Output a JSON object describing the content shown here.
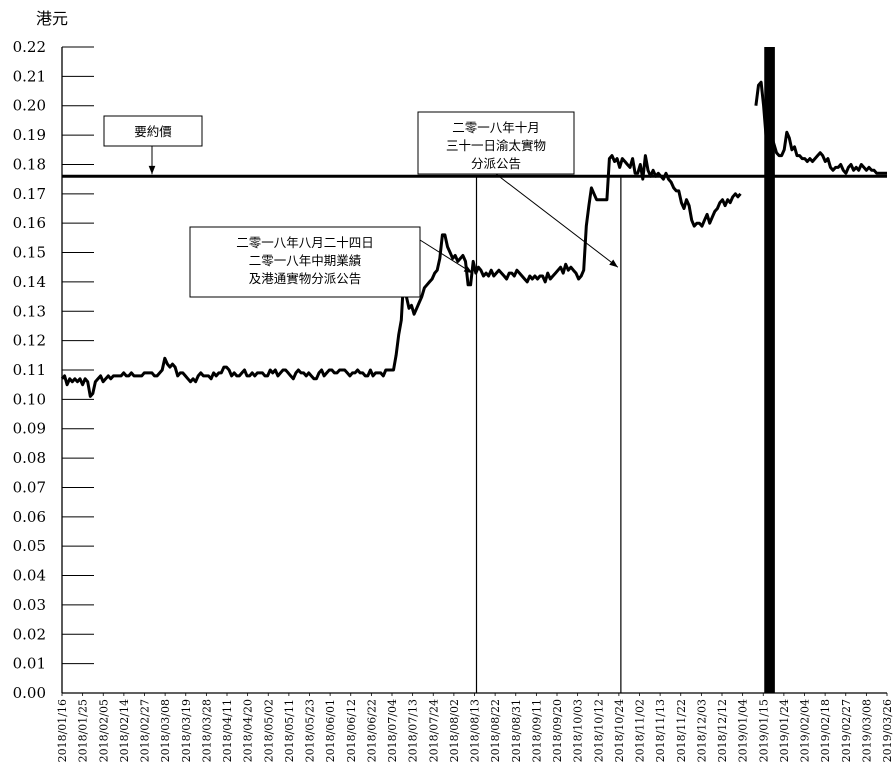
{
  "chart_data": {
    "type": "line",
    "ylabel": "港元",
    "ylim": [
      0,
      0.22
    ],
    "yticks": [
      "0.00",
      "0.01",
      "0.02",
      "0.03",
      "0.04",
      "0.05",
      "0.06",
      "0.07",
      "0.08",
      "0.09",
      "0.10",
      "0.11",
      "0.12",
      "0.13",
      "0.14",
      "0.15",
      "0.16",
      "0.17",
      "0.18",
      "0.19",
      "0.20",
      "0.21",
      "0.22"
    ],
    "xlim": [
      "2018-01-16",
      "2019-03-26"
    ],
    "xticks": [
      "2018/01/16",
      "2018/01/25",
      "2018/02/05",
      "2018/02/14",
      "2018/02/27",
      "2018/03/08",
      "2018/03/19",
      "2018/03/28",
      "2018/04/11",
      "2018/04/20",
      "2018/05/02",
      "2018/05/11",
      "2018/05/23",
      "2018/06/01",
      "2018/06/12",
      "2018/06/22",
      "2018/07/04",
      "2018/07/13",
      "2018/07/24",
      "2018/08/02",
      "2018/08/13",
      "2018/08/22",
      "2018/08/31",
      "2018/09/11",
      "2018/09/20",
      "2018/10/03",
      "2018/10/12",
      "2018/10/24",
      "2018/11/02",
      "2018/11/13",
      "2018/11/22",
      "2018/12/03",
      "2018/12/12",
      "2019/01/04",
      "2019/01/15",
      "2019/01/24",
      "2019/02/04",
      "2019/02/18",
      "2019/02/27",
      "2019/03/08",
      "2019/03/26"
    ],
    "grid": false,
    "series": [
      {
        "values": [
          0.107,
          0.108,
          0.105,
          0.107,
          0.106,
          0.107,
          0.106,
          0.107,
          0.105,
          0.107,
          0.106,
          0.101,
          0.102,
          0.106,
          0.107,
          0.108,
          0.106,
          0.107,
          0.108,
          0.107,
          0.108,
          0.108,
          0.108,
          0.108,
          0.109,
          0.108,
          0.108,
          0.109,
          0.108,
          0.108,
          0.108,
          0.108,
          0.109,
          0.109,
          0.109,
          0.109,
          0.108,
          0.108,
          0.109,
          0.11,
          0.114,
          0.112,
          0.111,
          0.112,
          0.111,
          0.108,
          0.109,
          0.109,
          0.108,
          0.107,
          0.106,
          0.107,
          0.106,
          0.108,
          0.109,
          0.108,
          0.108,
          0.108,
          0.107,
          0.109,
          0.108,
          0.109,
          0.109,
          0.111,
          0.111,
          0.11,
          0.108,
          0.109,
          0.108,
          0.108,
          0.109,
          0.11,
          0.108,
          0.108,
          0.109,
          0.108,
          0.109,
          0.109,
          0.109,
          0.108,
          0.108,
          0.11,
          0.109,
          0.11,
          0.108,
          0.109,
          0.11,
          0.11,
          0.109,
          0.108,
          0.107,
          0.109,
          0.11,
          0.109,
          0.109,
          0.108,
          0.109,
          0.108,
          0.107,
          0.107,
          0.109,
          0.11,
          0.108,
          0.109,
          0.11,
          0.11,
          0.109,
          0.109,
          0.11,
          0.11,
          0.11,
          0.109,
          0.108,
          0.109,
          0.109,
          0.11,
          0.109,
          0.109,
          0.108,
          0.108,
          0.11,
          0.108,
          0.109,
          0.109,
          0.109,
          0.108,
          0.11,
          0.11,
          0.11,
          0.11,
          0.115,
          0.122,
          0.127,
          0.142,
          0.135,
          0.131,
          0.132,
          0.129,
          0.131,
          0.133,
          0.135,
          0.138,
          0.139,
          0.14,
          0.141,
          0.143,
          0.144,
          0.148,
          0.156,
          0.156,
          0.152,
          0.15,
          0.148,
          0.149,
          0.147,
          0.148,
          0.149,
          0.147,
          0.139,
          0.139,
          0.147,
          0.143,
          0.145,
          0.144,
          0.142,
          0.143,
          0.142,
          0.144,
          0.142,
          0.143,
          0.144,
          0.143,
          0.142,
          0.141,
          0.143,
          0.143,
          0.142,
          0.144,
          0.143,
          0.142,
          0.141,
          0.14,
          0.142,
          0.141,
          0.142,
          0.141,
          0.142,
          0.142,
          0.14,
          0.143,
          0.141,
          0.142,
          0.143,
          0.144,
          0.145,
          0.143,
          0.146,
          0.144,
          0.145,
          0.144,
          0.143,
          0.141,
          0.142,
          0.144,
          0.159,
          0.166,
          0.172,
          0.17,
          0.168,
          0.168,
          0.168,
          0.168,
          0.168,
          0.182,
          0.183,
          0.181,
          0.182,
          0.179,
          0.182,
          0.181,
          0.18,
          0.179,
          0.182,
          0.177,
          0.177,
          0.18,
          0.175,
          0.183,
          0.178,
          0.176,
          0.178,
          0.176,
          0.177,
          0.176,
          0.175,
          0.177,
          0.175,
          0.174,
          0.172,
          0.171,
          0.171,
          0.167,
          0.165,
          0.168,
          0.166,
          0.161,
          0.159,
          0.16,
          0.16,
          0.159,
          0.161,
          0.163,
          0.16,
          0.162,
          0.164,
          0.165,
          0.167,
          0.168,
          0.166,
          0.168,
          0.167,
          0.169,
          0.17,
          0.169,
          0.17,
          null,
          null,
          null,
          null,
          null,
          0.2,
          0.207,
          0.208,
          0.2,
          0.189,
          0.185,
          0.19,
          0.187,
          0.184,
          0.183,
          0.183,
          0.185,
          0.191,
          0.189,
          0.185,
          0.186,
          0.183,
          0.183,
          0.182,
          0.182,
          0.181,
          0.182,
          0.181,
          0.182,
          0.183,
          0.184,
          0.183,
          0.181,
          0.182,
          0.179,
          0.178,
          0.179,
          0.179,
          0.18,
          0.178,
          0.177,
          0.179,
          0.18,
          0.178,
          0.179,
          0.178,
          0.18,
          0.179,
          0.178,
          0.179,
          0.178,
          0.178,
          0.177,
          0.177,
          0.177,
          0.177,
          0.177
        ]
      }
    ],
    "reference_line": {
      "label": "要約價",
      "value": 0.176
    },
    "markers": [
      {
        "x_tick": "2018/08/13",
        "label": "二零一八年八月二十四日\n二零一八年中期業績\n及港通實物分派公告"
      },
      {
        "x_tick": "2018/10/24",
        "label": "二零一八年十月\n三十一日渝太實物\n分派公告"
      }
    ],
    "suspension_band": {
      "from_tick": "2019/01/15",
      "to_tick": "2019/01/24"
    }
  }
}
